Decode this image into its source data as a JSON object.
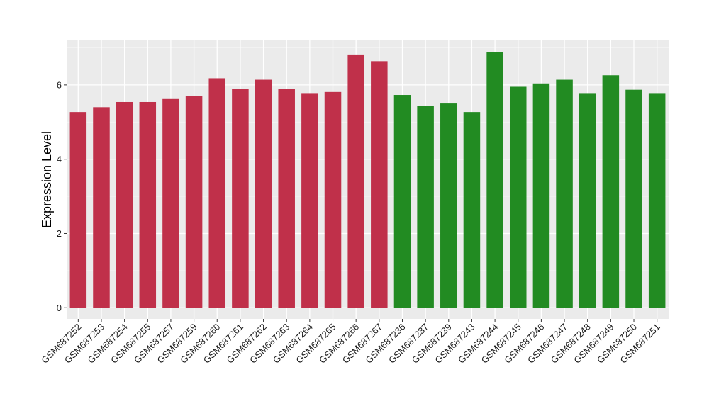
{
  "chart_data": {
    "type": "bar",
    "ylabel": "Expression Level",
    "xlabel": "",
    "ylim": [
      -0.3,
      7.2
    ],
    "yticks": [
      0,
      2,
      4,
      6
    ],
    "grid": true,
    "colors": {
      "group_a": "#c0304a",
      "group_b": "#228b22",
      "panel": "#ebebeb",
      "grid": "#ffffff"
    },
    "categories": [
      "GSM687252",
      "GSM687253",
      "GSM687254",
      "GSM687255",
      "GSM687257",
      "GSM687259",
      "GSM687260",
      "GSM687261",
      "GSM687262",
      "GSM687263",
      "GSM687264",
      "GSM687265",
      "GSM687266",
      "GSM687267",
      "GSM687236",
      "GSM687237",
      "GSM687239",
      "GSM687243",
      "GSM687244",
      "GSM687245",
      "GSM687246",
      "GSM687247",
      "GSM687248",
      "GSM687249",
      "GSM687250",
      "GSM687251"
    ],
    "values": [
      5.27,
      5.4,
      5.54,
      5.54,
      5.62,
      5.7,
      6.18,
      5.89,
      6.14,
      5.89,
      5.78,
      5.81,
      6.82,
      6.64,
      5.73,
      5.44,
      5.5,
      5.27,
      6.89,
      5.95,
      6.04,
      6.14,
      5.78,
      6.26,
      5.87,
      5.78
    ],
    "groups": [
      "a",
      "a",
      "a",
      "a",
      "a",
      "a",
      "a",
      "a",
      "a",
      "a",
      "a",
      "a",
      "a",
      "a",
      "b",
      "b",
      "b",
      "b",
      "b",
      "b",
      "b",
      "b",
      "b",
      "b",
      "b",
      "b"
    ]
  }
}
